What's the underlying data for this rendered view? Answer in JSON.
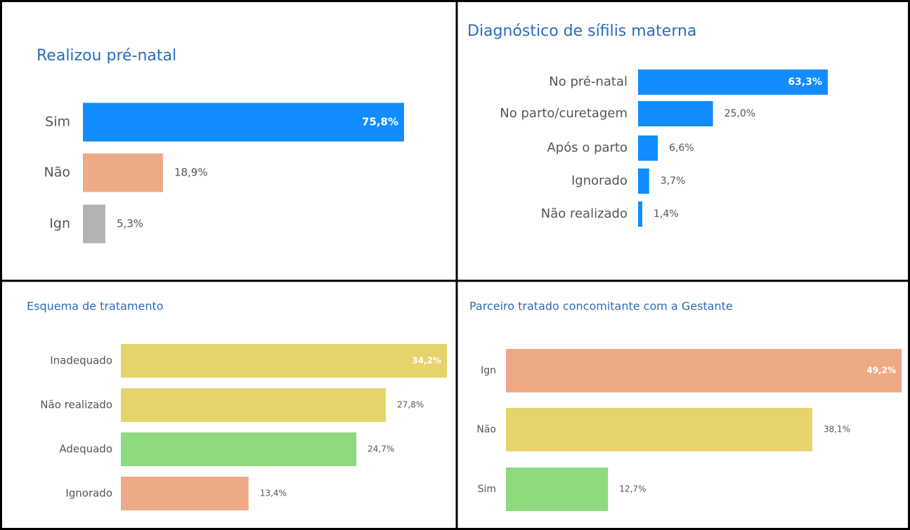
{
  "chart_data": [
    {
      "type": "barh",
      "title": "Realizou pré-natal",
      "categories": [
        "Sim",
        "Não",
        "Ign"
      ],
      "values": [
        75.8,
        18.9,
        5.3
      ],
      "value_labels": [
        "75,8%",
        "18,9%",
        "5,3%"
      ],
      "colors": [
        "#118dff",
        "#eea987",
        "#b3b3b3"
      ],
      "xlim": [
        0,
        75.8
      ]
    },
    {
      "type": "barh",
      "title": "Diagnóstico de sífilis materna",
      "categories": [
        "No pré-natal",
        "No parto/curetagem",
        "Após o parto",
        "Ignorado",
        "Não realizado"
      ],
      "values": [
        63.3,
        25.0,
        6.6,
        3.7,
        1.4
      ],
      "value_labels": [
        "63,3%",
        "25,0%",
        "6,6%",
        "3,7%",
        "1,4%"
      ],
      "colors": [
        "#118dff",
        "#118dff",
        "#118dff",
        "#118dff",
        "#118dff"
      ],
      "xlim": [
        0,
        63.3
      ]
    },
    {
      "type": "barh",
      "title": "Esquema de tratamento",
      "categories": [
        "Inadequado",
        "Não realizado",
        "Adequado",
        "Ignorado"
      ],
      "values": [
        34.2,
        27.8,
        24.7,
        13.4
      ],
      "value_labels": [
        "34,2%",
        "27,8%",
        "24,7%",
        "13,4%"
      ],
      "colors": [
        "#e6d36b",
        "#e6d36b",
        "#8fd97f",
        "#eea987"
      ],
      "xlim": [
        0,
        34.2
      ]
    },
    {
      "type": "barh",
      "title": "Parceiro tratado concomitante com a Gestante",
      "categories": [
        "Ign",
        "Não",
        "Sim"
      ],
      "values": [
        49.2,
        38.1,
        12.7
      ],
      "value_labels": [
        "49,2%",
        "38,1%",
        "12,7%"
      ],
      "colors": [
        "#eea987",
        "#e6d36b",
        "#8fd97f"
      ],
      "xlim": [
        0,
        49.2
      ]
    }
  ]
}
